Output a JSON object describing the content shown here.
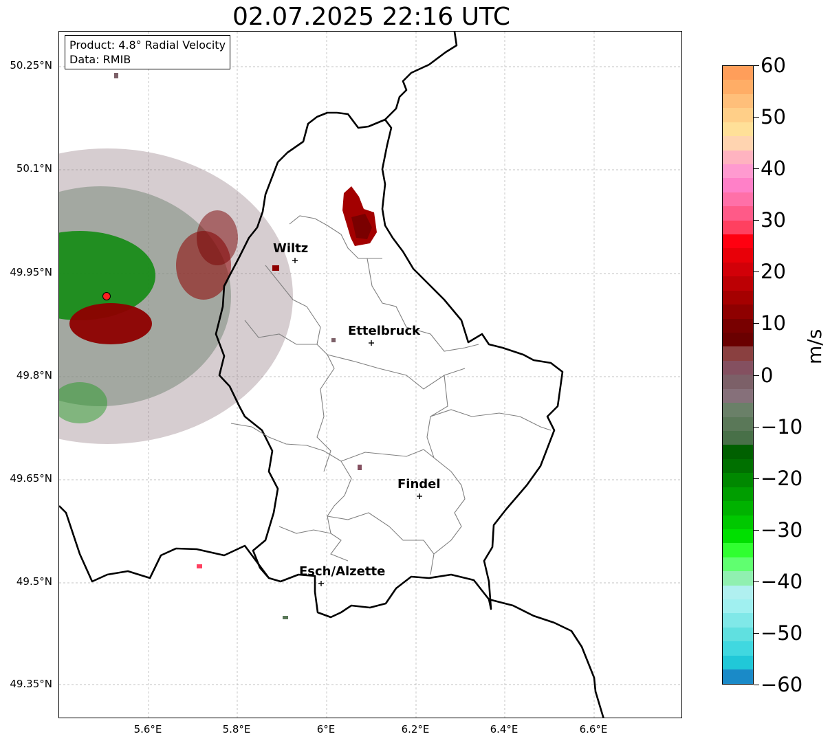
{
  "title": "02.07.2025 22:16 UTC",
  "info": {
    "product": "Product: 4.8° Radial Velocity",
    "data_source": "Data: RMIB"
  },
  "lat_ticks": [
    "50.25°N",
    "50.1°N",
    "49.95°N",
    "49.8°N",
    "49.65°N",
    "49.5°N",
    "49.35°N"
  ],
  "lon_ticks": [
    "5.6°E",
    "5.8°E",
    "6°E",
    "6.2°E",
    "6.4°E",
    "6.6°E"
  ],
  "cities": [
    {
      "name": "Wiltz"
    },
    {
      "name": "Ettelbruck"
    },
    {
      "name": "Findel"
    },
    {
      "name": "Esch/Alzette"
    }
  ],
  "colorbar": {
    "label": "m/s",
    "ticks": [
      "60",
      "50",
      "40",
      "30",
      "20",
      "10",
      "0",
      "−10",
      "−20",
      "−30",
      "−40",
      "−50",
      "−60"
    ],
    "range": [
      -60,
      60
    ],
    "colors": [
      "#ff9e5a",
      "#ffad66",
      "#ffbf7a",
      "#ffcf88",
      "#ffe098",
      "#ffd4b0",
      "#ffb3c0",
      "#ff9ad0",
      "#ff80c8",
      "#ff70a8",
      "#ff5a88",
      "#ff4060",
      "#ff0010",
      "#e80008",
      "#d20008",
      "#bc0004",
      "#a50000",
      "#8e0000",
      "#780000",
      "#6a0000",
      "#8a4040",
      "#845060",
      "#7c6068",
      "#86707a",
      "#6a8068",
      "#5a7858",
      "#487048",
      "#006000",
      "#007000",
      "#008800",
      "#009e00",
      "#00b200",
      "#00c800",
      "#00e000",
      "#30ff30",
      "#60ff70",
      "#90f0b0",
      "#b0f0f0",
      "#a0f0f0",
      "#80e8e8",
      "#60e0e0",
      "#40d8e0",
      "#20c8d8",
      "#1a8ac8"
    ]
  }
}
